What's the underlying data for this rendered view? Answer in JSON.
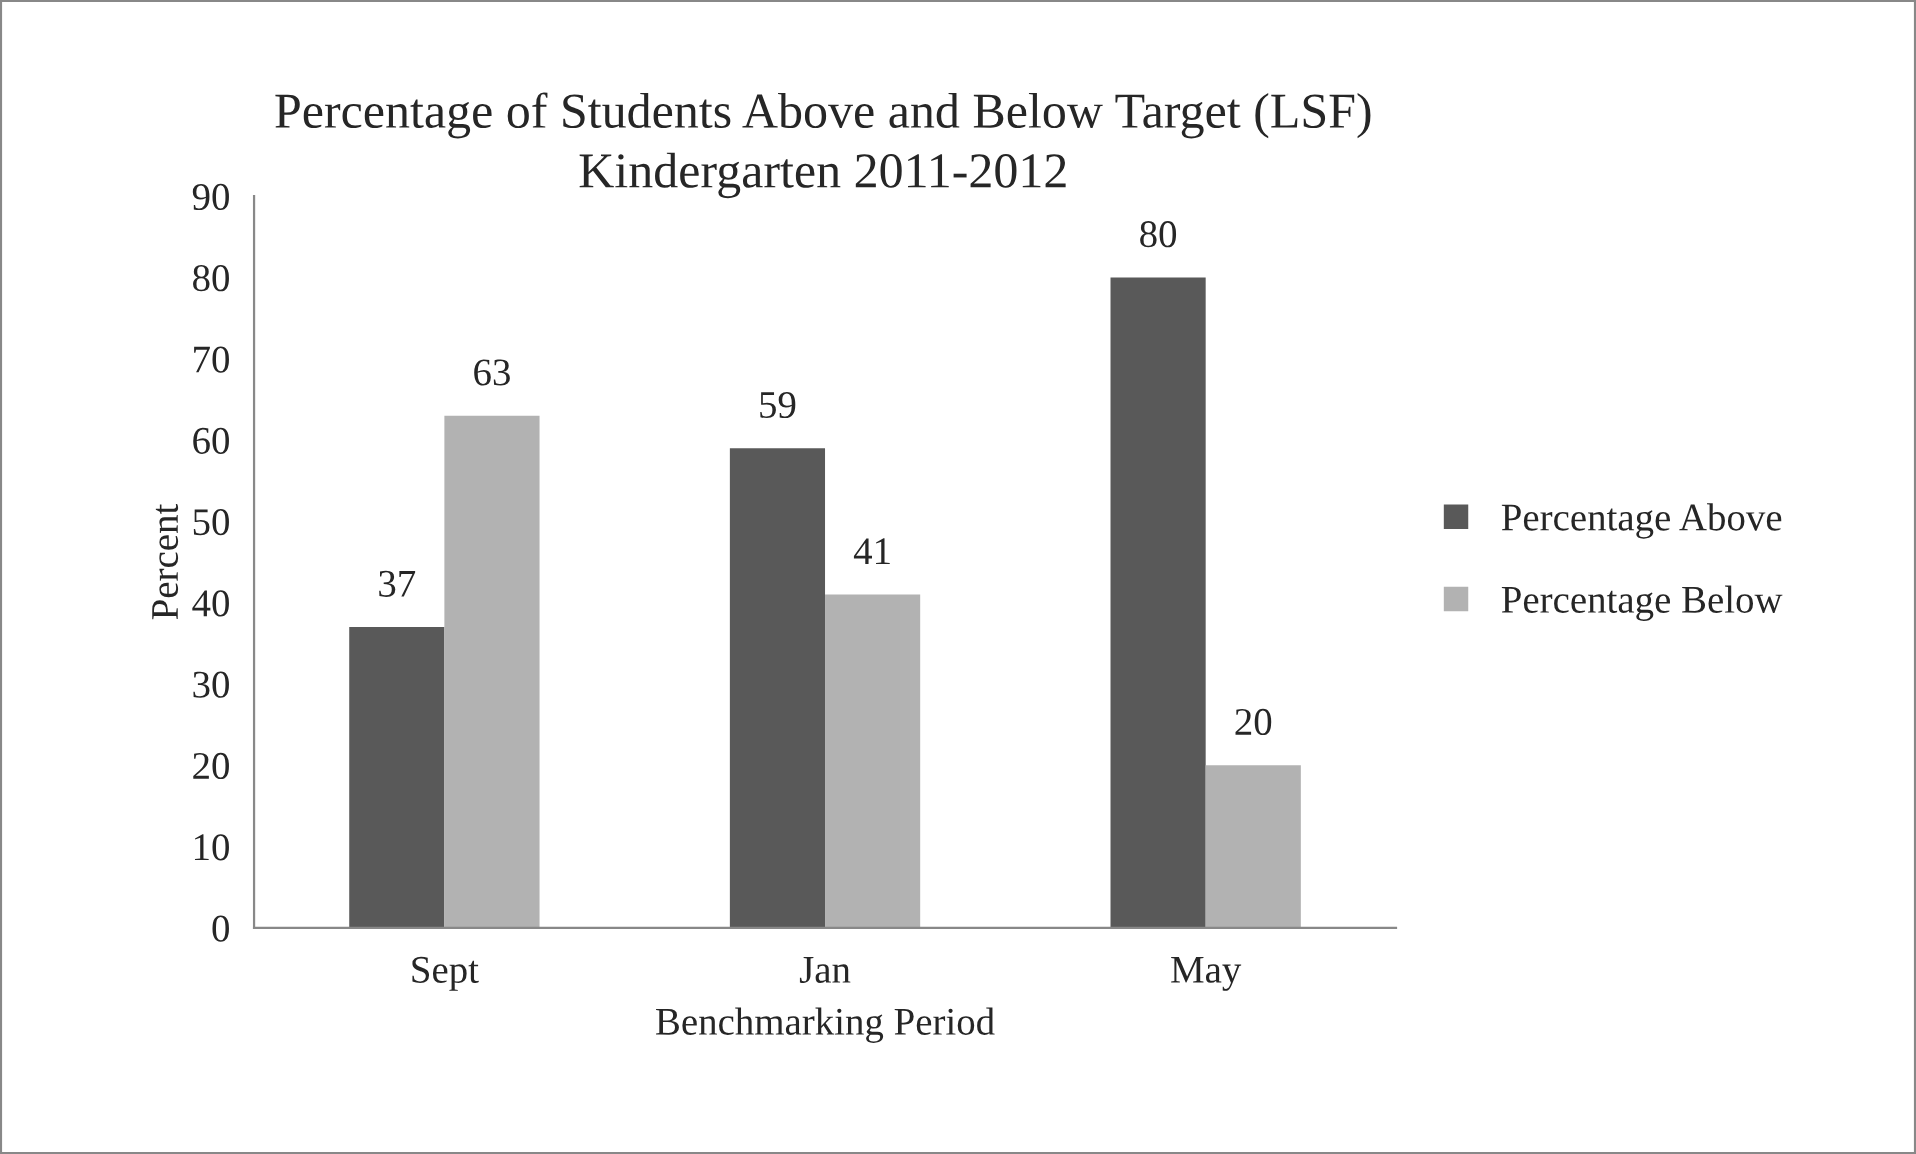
{
  "chart_data": {
    "type": "bar",
    "title": "Percentage of Students Above and Below Target (LSF)",
    "subtitle": "Kindergarten 2011-2012",
    "xlabel": "Benchmarking Period",
    "ylabel": "Percent",
    "categories": [
      "Sept",
      "Jan",
      "May"
    ],
    "series": [
      {
        "name": "Percentage Above",
        "color": "#595959",
        "values": [
          37,
          59,
          80
        ]
      },
      {
        "name": "Percentage Below",
        "color": "#b2b2b2",
        "values": [
          63,
          41,
          20
        ]
      }
    ],
    "ylim": [
      0,
      90
    ],
    "yticks": [
      0,
      10,
      20,
      30,
      40,
      50,
      60,
      70,
      80,
      90
    ],
    "grid": false,
    "legend": "right",
    "data_labels": true
  }
}
